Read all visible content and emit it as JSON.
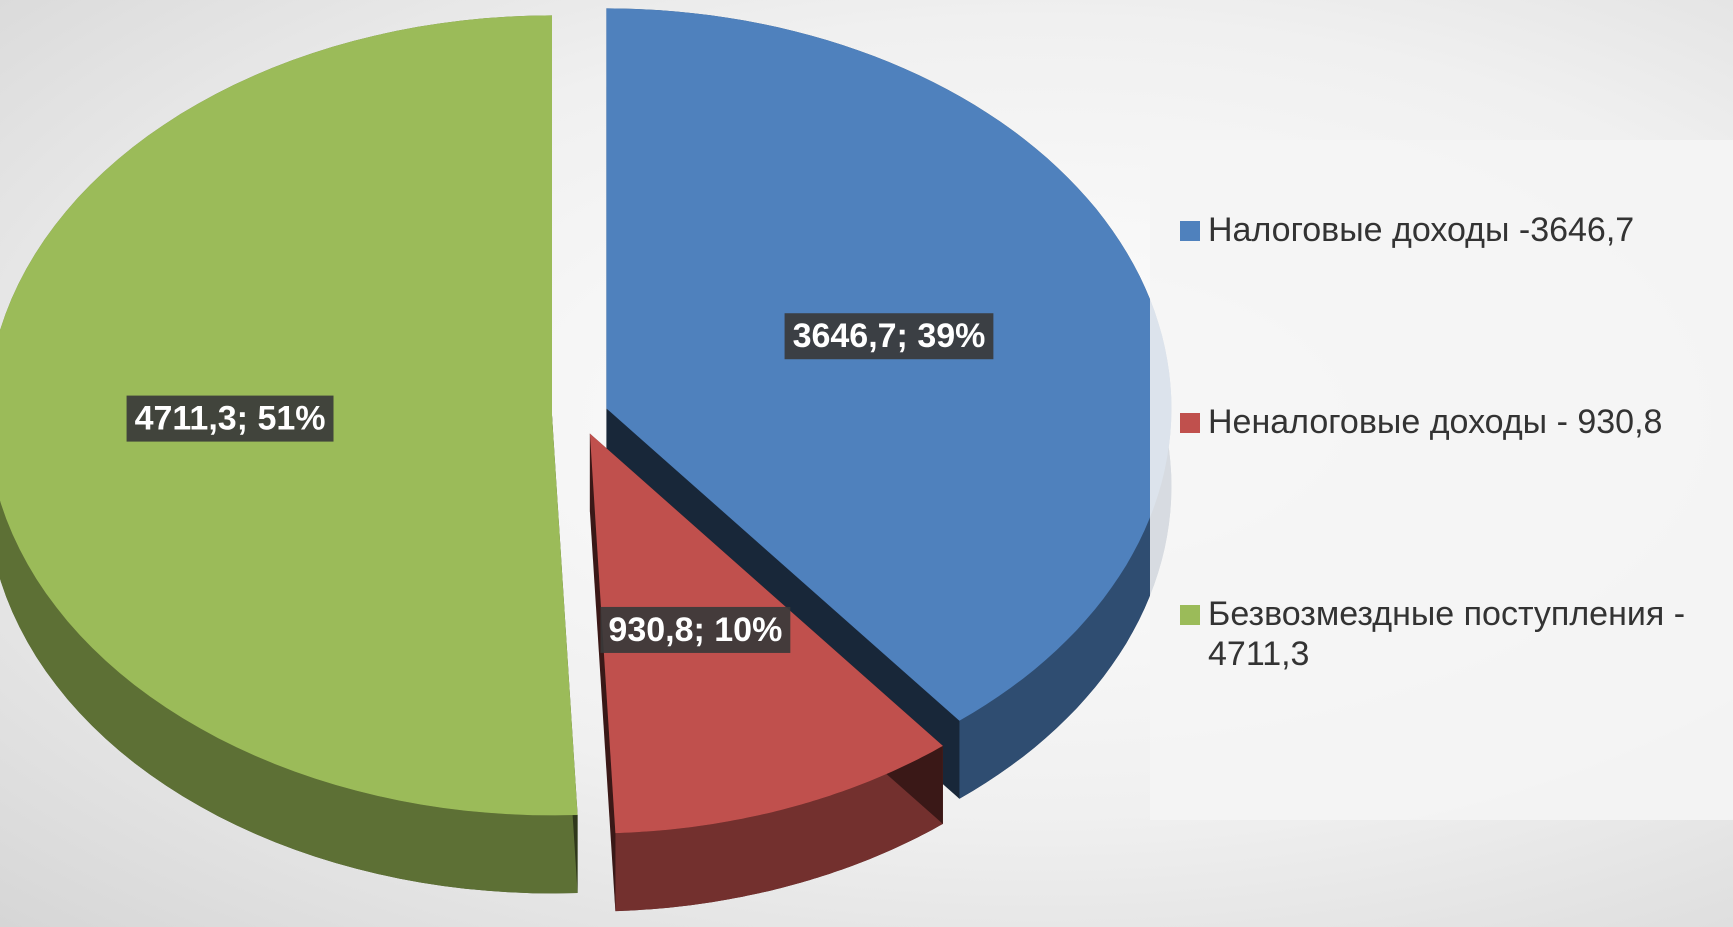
{
  "chart_data": {
    "type": "pie",
    "categories": [
      "Налоговые доходы -3646,7",
      "Неналоговые доходы - 930,8",
      "Безвозмездные поступления - 4711,3"
    ],
    "values": [
      3646.7,
      930.8,
      4711.3
    ],
    "value_labels": [
      "3646,7; 39%",
      "930,8; 10%",
      "4711,3; 51%"
    ],
    "colors": [
      "#4f81bd",
      "#c0504d",
      "#9bbb59"
    ],
    "legend": "right"
  }
}
